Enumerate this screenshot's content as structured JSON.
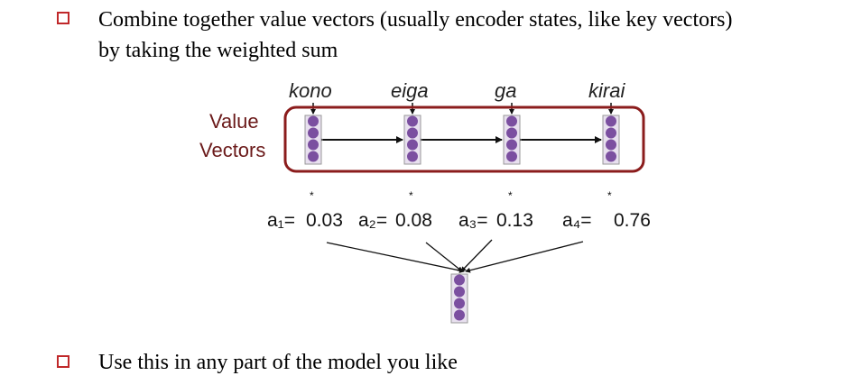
{
  "bullets": [
    {
      "line1": "Combine together value vectors (usually encoder states, like key vectors)",
      "line2": "by taking the weighted sum"
    },
    {
      "line1": "Use this in any part of the model you like"
    }
  ],
  "diagram": {
    "words": [
      "kono",
      "eiga",
      "ga",
      "kirai"
    ],
    "value_label_line1": "Value",
    "value_label_line2": "Vectors",
    "star": "*",
    "weights": [
      {
        "name": "a₁=",
        "value": "0.03"
      },
      {
        "name": "a₂=",
        "value": "0.08"
      },
      {
        "name": "a₃=",
        "value": "0.13"
      },
      {
        "name": "a₄=",
        "value": "0.76"
      }
    ]
  },
  "colors": {
    "bullet": "#c0282a",
    "box_border": "#8b1c1c",
    "node": "#7b4fa0"
  }
}
